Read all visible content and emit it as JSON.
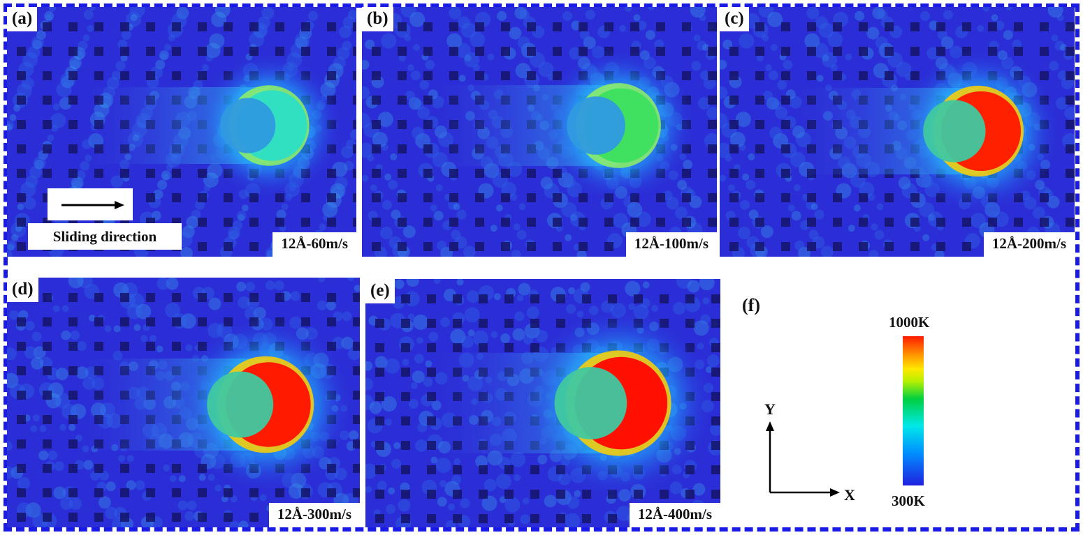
{
  "panels": [
    {
      "label": "(a)",
      "speed": "12Å-60m/s"
    },
    {
      "label": "(b)",
      "speed": "12Å-100m/s"
    },
    {
      "label": "(c)",
      "speed": "12Å-200m/s"
    },
    {
      "label": "(d)",
      "speed": "12Å-300m/s"
    },
    {
      "label": "(e)",
      "speed": "12Å-400m/s"
    }
  ],
  "sliding_label": "Sliding direction",
  "legend": {
    "label": "(f)",
    "max_label": "1000K",
    "min_label": "300K",
    "x_axis": "X",
    "y_axis": "Y",
    "gradient_colors": [
      "#2020e0",
      "#0090ff",
      "#00e8e8",
      "#00d040",
      "#ffe800",
      "#ff9000",
      "#ff1a00"
    ]
  }
}
